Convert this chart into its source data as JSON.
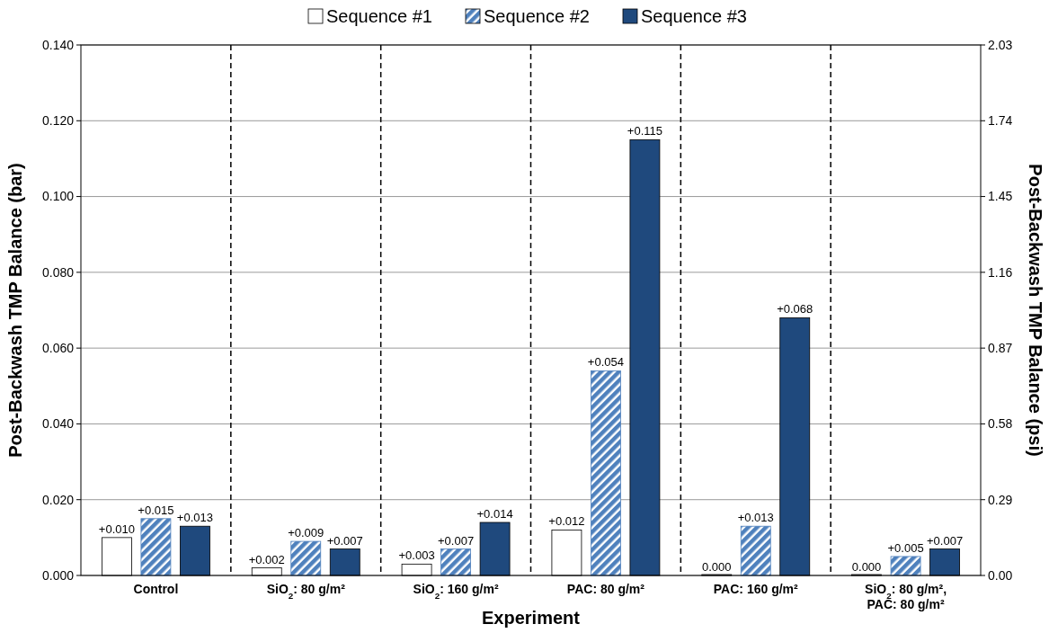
{
  "chart_data": {
    "type": "bar",
    "xlabel": "Experiment",
    "ylabel": "Post-Backwash TMP Balance (bar)",
    "y2label": "Post-Backwash TMP Balance (psi)",
    "categories": [
      "Control",
      "SiO$_{2}$: 80 g/m²",
      "SiO$_{2}$: 160 g/m²",
      "PAC: 80 g/m²",
      "PAC: 160 g/m²",
      "SiO$_{2}$: 80 g/m², PAC: 80 g/m²"
    ],
    "series": [
      {
        "name": "Sequence #1",
        "color": "#ffffff",
        "values": [
          0.01,
          0.002,
          0.003,
          0.012,
          0.0,
          0.0
        ],
        "value_labels": [
          "+0.010",
          "+0.002",
          "+0.003",
          "+0.012",
          "0.000",
          "0.000"
        ]
      },
      {
        "name": "Sequence #2",
        "color": "#4f81bd",
        "values": [
          0.015,
          0.009,
          0.007,
          0.054,
          0.013,
          0.005
        ],
        "value_labels": [
          "+0.015",
          "+0.009",
          "+0.007",
          "+0.054",
          "+0.013",
          "+0.005"
        ]
      },
      {
        "name": "Sequence #3",
        "color": "#1f497d",
        "values": [
          0.013,
          0.007,
          0.014,
          0.115,
          0.068,
          0.007
        ],
        "value_labels": [
          "+0.013",
          "+0.007",
          "+0.014",
          "+0.115",
          "+0.068",
          "+0.007"
        ]
      }
    ],
    "ylim": [
      0,
      0.14
    ],
    "yticks": [
      {
        "value": 0,
        "label": "0.000"
      },
      {
        "value": 0.02,
        "label": "0.020"
      },
      {
        "value": 0.04,
        "label": "0.040"
      },
      {
        "value": 0.06,
        "label": "0.060"
      },
      {
        "value": 0.08,
        "label": "0.080"
      },
      {
        "value": 0.1,
        "label": "0.100"
      },
      {
        "value": 0.12,
        "label": "0.120"
      },
      {
        "value": 0.14,
        "label": "0.140"
      }
    ],
    "y2lim": [
      0,
      2.03
    ],
    "y2ticks": [
      {
        "value": 0,
        "label": "0.00"
      },
      {
        "value": 0.29,
        "label": "0.29"
      },
      {
        "value": 0.58,
        "label": "0.58"
      },
      {
        "value": 0.87,
        "label": "0.87"
      },
      {
        "value": 1.16,
        "label": "1.16"
      },
      {
        "value": 1.45,
        "label": "1.45"
      },
      {
        "value": 1.74,
        "label": "1.74"
      },
      {
        "value": 2.03,
        "label": "2.03"
      }
    ],
    "grid": true,
    "legend": "top"
  }
}
